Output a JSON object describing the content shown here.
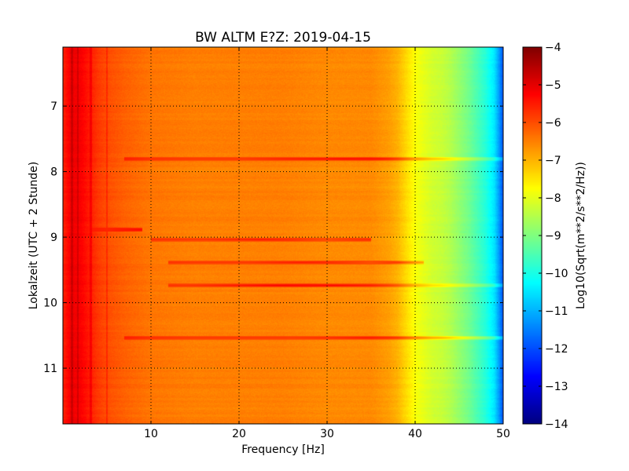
{
  "chart_data": {
    "type": "heatmap",
    "title": "BW ALTM E?Z: 2019-04-15",
    "xlabel": "Frequency [Hz]",
    "ylabel": "Lokalzeit (UTC + 2 Stunde)",
    "xlim": [
      0,
      50
    ],
    "ylim": [
      11.85,
      6.1
    ],
    "y_inverted": true,
    "xticks": [
      10,
      20,
      30,
      40,
      50
    ],
    "yticks": [
      7,
      8,
      9,
      10,
      11
    ],
    "grid": true,
    "grid_style": "dotted",
    "colormap": "jet",
    "colorbar": {
      "label": "Log10(Sqrt(m**2/s**2/Hz))",
      "range": [
        -14,
        -4
      ],
      "ticks": [
        -4,
        -5,
        -6,
        -7,
        -8,
        -9,
        -10,
        -11,
        -12,
        -13,
        -14
      ]
    },
    "level_profile_vs_frequency": {
      "frequency_hz": [
        0,
        1,
        2,
        3,
        4,
        5,
        7,
        10,
        15,
        20,
        25,
        30,
        35,
        37,
        38,
        39,
        40,
        41,
        42,
        43,
        44,
        45,
        46,
        47,
        48,
        49,
        49.5,
        50
      ],
      "log10_amplitude": [
        -5.6,
        -5.1,
        -5.2,
        -5.5,
        -5.8,
        -6.0,
        -6.2,
        -6.4,
        -6.5,
        -6.5,
        -6.5,
        -6.6,
        -6.6,
        -6.8,
        -7.0,
        -7.4,
        -7.8,
        -8.0,
        -8.2,
        -8.3,
        -8.5,
        -8.8,
        -9.1,
        -9.5,
        -9.9,
        -10.5,
        -11.2,
        -12.0
      ]
    },
    "strong_horizontal_bands": [
      {
        "time": 7.8,
        "f_start": 7,
        "f_end": 50,
        "peak_log10": -5.4,
        "peak_frequency": 34.5
      },
      {
        "time": 8.88,
        "f_start": 2,
        "f_end": 9,
        "peak_log10": -5.6,
        "peak_frequency": 5
      },
      {
        "time": 9.03,
        "f_start": 10,
        "f_end": 35,
        "peak_log10": -6.0,
        "peak_frequency": 30
      },
      {
        "time": 9.38,
        "f_start": 12,
        "f_end": 41,
        "peak_log10": -6.0,
        "peak_frequency": 35
      },
      {
        "time": 9.73,
        "f_start": 12,
        "f_end": 50,
        "peak_log10": -5.4,
        "peak_frequency": 28
      },
      {
        "time": 10.53,
        "f_start": 7,
        "f_end": 50,
        "peak_log10": -5.8,
        "peak_frequency": 40
      }
    ],
    "vertical_line_frequencies_hz": [
      1.0,
      1.7,
      3.2,
      5.0
    ]
  }
}
